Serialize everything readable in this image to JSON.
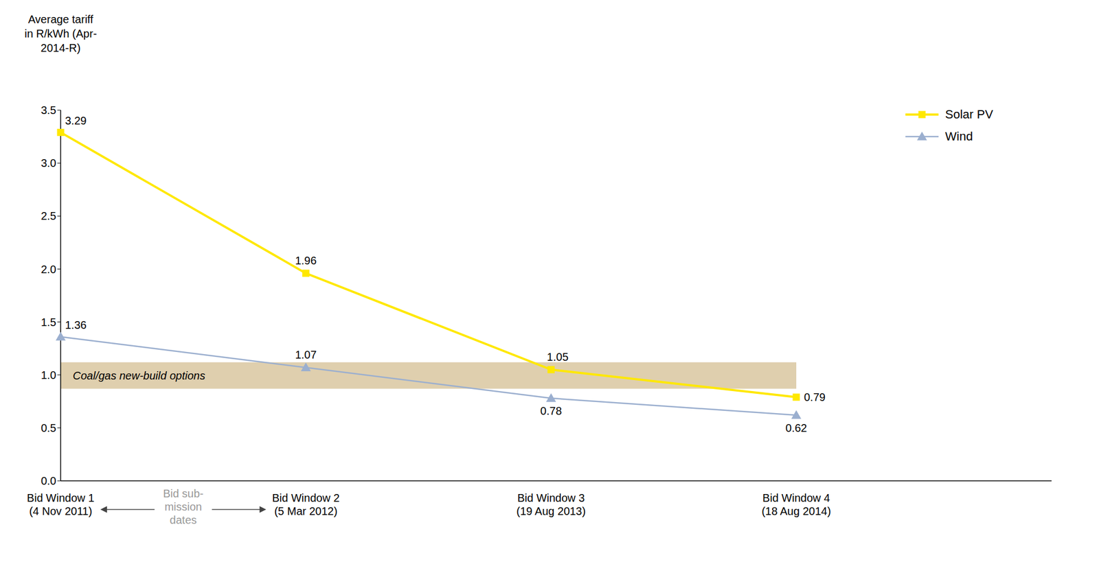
{
  "chart_data": {
    "type": "line",
    "y_label": "Average tariff in R/kWh (Apr-2014-R)",
    "categories": [
      "Bid Window 1 (4 Nov 2011)",
      "Bid Window 2 (5 Mar 2012)",
      "Bid Window 3 (19 Aug 2013)",
      "Bid Window 4 (18 Aug 2014)"
    ],
    "series": [
      {
        "name": "Solar PV",
        "color": "#FFE800",
        "marker": "square",
        "values": [
          3.29,
          1.96,
          1.05,
          0.79
        ]
      },
      {
        "name": "Wind",
        "color": "#9BAFCF",
        "marker": "triangle",
        "values": [
          1.36,
          1.07,
          0.78,
          0.62
        ]
      }
    ],
    "ylim": [
      0,
      3.5
    ],
    "yticks": [
      {
        "value": 0,
        "label": "0.0"
      },
      0.5,
      {
        "value": 1,
        "label": "1.0"
      },
      1.5,
      {
        "value": 2,
        "label": "2.0"
      },
      2.5,
      {
        "value": 3,
        "label": "3.0"
      },
      3.5
    ],
    "grid": false,
    "legend": "upper right",
    "data_labels": true,
    "reference_band": {
      "range": [
        0.87,
        1.12
      ],
      "label": "Coal/gas new-build options",
      "color": "#D9C7A0"
    },
    "annotation": "Bid sub-mission dates"
  }
}
